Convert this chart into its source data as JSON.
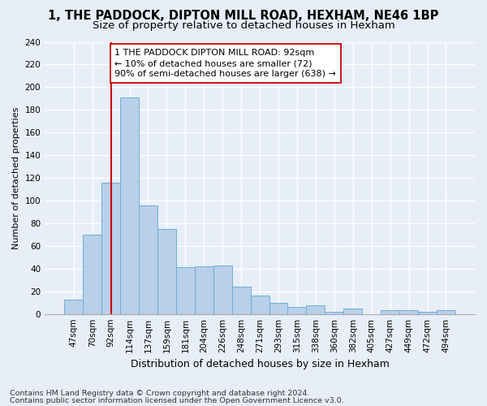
{
  "title1": "1, THE PADDOCK, DIPTON MILL ROAD, HEXHAM, NE46 1BP",
  "title2": "Size of property relative to detached houses in Hexham",
  "xlabel": "Distribution of detached houses by size in Hexham",
  "ylabel": "Number of detached properties",
  "categories": [
    "47sqm",
    "70sqm",
    "92sqm",
    "114sqm",
    "137sqm",
    "159sqm",
    "181sqm",
    "204sqm",
    "226sqm",
    "248sqm",
    "271sqm",
    "293sqm",
    "315sqm",
    "338sqm",
    "360sqm",
    "382sqm",
    "405sqm",
    "427sqm",
    "449sqm",
    "472sqm",
    "494sqm"
  ],
  "values": [
    13,
    70,
    116,
    191,
    96,
    75,
    41,
    42,
    43,
    24,
    16,
    10,
    6,
    8,
    2,
    5,
    0,
    3,
    3,
    2,
    3
  ],
  "bar_color": "#b8d0ea",
  "bar_edge_color": "#6aaed6",
  "vline_x_idx": 2,
  "vline_color": "#cc0000",
  "annotation_text": "1 THE PADDOCK DIPTON MILL ROAD: 92sqm\n← 10% of detached houses are smaller (72)\n90% of semi-detached houses are larger (638) →",
  "annotation_box_color": "#ffffff",
  "annotation_box_edge": "#cc0000",
  "ylim": [
    0,
    240
  ],
  "yticks": [
    0,
    20,
    40,
    60,
    80,
    100,
    120,
    140,
    160,
    180,
    200,
    220,
    240
  ],
  "footer1": "Contains HM Land Registry data © Crown copyright and database right 2024.",
  "footer2": "Contains public sector information licensed under the Open Government Licence v3.0.",
  "bg_color": "#e8eef7",
  "plot_bg_color": "#e8eef7",
  "title1_fontsize": 10.5,
  "title2_fontsize": 9.5,
  "xlabel_fontsize": 9,
  "ylabel_fontsize": 8,
  "tick_fontsize": 7.5,
  "annotation_fontsize": 8,
  "footer_fontsize": 6.8
}
